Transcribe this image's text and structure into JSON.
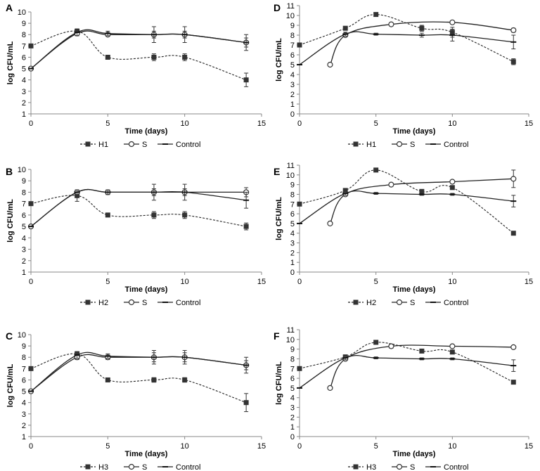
{
  "figure": {
    "panel_labels": [
      "A",
      "B",
      "C",
      "D",
      "E",
      "F"
    ]
  },
  "chart_data": [
    {
      "panel": "A",
      "type": "line",
      "title": "",
      "xlabel": "Time (days)",
      "ylabel": "log CFU/mL",
      "xlim": [
        0,
        15
      ],
      "ylim": [
        1,
        10
      ],
      "xticks": [
        "0",
        "5",
        "10",
        "15"
      ],
      "yticks": [
        "1",
        "2",
        "3",
        "4",
        "5",
        "6",
        "7",
        "8",
        "9",
        "10"
      ],
      "legend": [
        "H1",
        "S",
        "Control"
      ],
      "series": [
        {
          "name": "H1",
          "style": "dashed",
          "marker": "square",
          "x": [
            0,
            3,
            5,
            8,
            10,
            14
          ],
          "y": [
            7.0,
            8.3,
            6.0,
            6.0,
            6.0,
            4.0
          ],
          "err": [
            0,
            0.2,
            0.1,
            0.3,
            0.3,
            0.6
          ]
        },
        {
          "name": "S",
          "style": "solid",
          "marker": "circle",
          "x": [
            0,
            3,
            5,
            8,
            10,
            14
          ],
          "y": [
            5.0,
            8.1,
            8.0,
            8.0,
            8.0,
            7.3
          ],
          "err": [
            0,
            0.2,
            0.1,
            0.3,
            0.3,
            0.4
          ]
        },
        {
          "name": "Control",
          "style": "solid",
          "marker": "dash",
          "x": [
            0,
            3,
            5,
            8,
            10,
            14
          ],
          "y": [
            5.0,
            8.2,
            8.1,
            8.0,
            8.0,
            7.3
          ],
          "err": [
            0,
            0.3,
            0.2,
            0.7,
            0.7,
            0.7
          ]
        }
      ]
    },
    {
      "panel": "B",
      "type": "line",
      "title": "",
      "xlabel": "Time (days)",
      "ylabel": "log CFU/mL",
      "xlim": [
        0,
        15
      ],
      "ylim": [
        1,
        10
      ],
      "xticks": [
        "0",
        "5",
        "10",
        "15"
      ],
      "yticks": [
        "1",
        "2",
        "3",
        "4",
        "5",
        "6",
        "7",
        "8",
        "9",
        "10"
      ],
      "legend": [
        "H2",
        "S",
        "Control"
      ],
      "series": [
        {
          "name": "H2",
          "style": "dashed",
          "marker": "square",
          "x": [
            0,
            3,
            5,
            8,
            10,
            14
          ],
          "y": [
            7.0,
            7.7,
            6.0,
            6.0,
            6.0,
            5.0
          ],
          "err": [
            0,
            0.5,
            0.1,
            0.3,
            0.3,
            0.3
          ]
        },
        {
          "name": "S",
          "style": "solid",
          "marker": "circle",
          "x": [
            0,
            3,
            5,
            8,
            10,
            14
          ],
          "y": [
            5.0,
            8.0,
            8.0,
            8.0,
            8.0,
            8.0
          ],
          "err": [
            0,
            0.2,
            0.2,
            0.3,
            0.3,
            0.4
          ]
        },
        {
          "name": "Control",
          "style": "solid",
          "marker": "dash",
          "x": [
            0,
            3,
            5,
            8,
            10,
            14
          ],
          "y": [
            5.0,
            8.0,
            8.0,
            8.0,
            8.0,
            7.3
          ],
          "err": [
            0,
            0.2,
            0.2,
            0.7,
            0.7,
            0.7
          ]
        }
      ]
    },
    {
      "panel": "C",
      "type": "line",
      "title": "",
      "xlabel": "Time (days)",
      "ylabel": "log CFU/mL",
      "xlim": [
        0,
        15
      ],
      "ylim": [
        1,
        10
      ],
      "xticks": [
        "0",
        "5",
        "10",
        "15"
      ],
      "yticks": [
        "1",
        "2",
        "3",
        "4",
        "5",
        "6",
        "7",
        "8",
        "9",
        "10"
      ],
      "legend": [
        "H3",
        "S",
        "Control"
      ],
      "series": [
        {
          "name": "H3",
          "style": "dashed",
          "marker": "square",
          "x": [
            0,
            3,
            5,
            8,
            10,
            14
          ],
          "y": [
            7.0,
            8.3,
            6.0,
            6.0,
            6.0,
            4.0
          ],
          "err": [
            0,
            0.2,
            0.1,
            0.2,
            0.2,
            0.8
          ]
        },
        {
          "name": "S",
          "style": "solid",
          "marker": "circle",
          "x": [
            0,
            3,
            5,
            8,
            10,
            14
          ],
          "y": [
            5.0,
            8.0,
            8.0,
            8.0,
            8.0,
            7.3
          ],
          "err": [
            0,
            0.2,
            0.2,
            0.4,
            0.4,
            0.4
          ]
        },
        {
          "name": "Control",
          "style": "solid",
          "marker": "dash",
          "x": [
            0,
            3,
            5,
            8,
            10,
            14
          ],
          "y": [
            5.0,
            8.2,
            8.1,
            8.0,
            8.0,
            7.3
          ],
          "err": [
            0,
            0.3,
            0.2,
            0.6,
            0.6,
            0.7
          ]
        }
      ]
    },
    {
      "panel": "D",
      "type": "line",
      "title": "",
      "xlabel": "Time (days)",
      "ylabel": "log CFU/mL",
      "xlim": [
        0,
        15
      ],
      "ylim": [
        0,
        11
      ],
      "xticks": [
        "0",
        "5",
        "10",
        "15"
      ],
      "yticks": [
        "0",
        "1",
        "2",
        "3",
        "4",
        "5",
        "6",
        "7",
        "8",
        "9",
        "10",
        "11"
      ],
      "legend": [
        "H1",
        "S",
        "Control"
      ],
      "series": [
        {
          "name": "H1",
          "style": "dashed",
          "marker": "square",
          "x": [
            0,
            3,
            5,
            8,
            10,
            14
          ],
          "y": [
            7.0,
            8.7,
            10.1,
            8.7,
            8.3,
            5.3
          ],
          "err": [
            0,
            0.1,
            0.1,
            0.3,
            0.5,
            0.3
          ]
        },
        {
          "name": "S",
          "style": "solid",
          "marker": "circle",
          "x": [
            2,
            3,
            6,
            10,
            14
          ],
          "y": [
            5.0,
            8.0,
            9.1,
            9.3,
            8.5
          ],
          "err": [
            0,
            0,
            0.1,
            0.1,
            0.2
          ]
        },
        {
          "name": "Control",
          "style": "solid",
          "marker": "dash",
          "x": [
            0,
            3,
            5,
            8,
            10,
            14
          ],
          "y": [
            5.0,
            8.1,
            8.1,
            8.0,
            8.0,
            7.3
          ],
          "err": [
            0,
            0.2,
            0.1,
            0.2,
            0.6,
            0.7
          ]
        }
      ]
    },
    {
      "panel": "E",
      "type": "line",
      "title": "",
      "xlabel": "Time (days)",
      "ylabel": "log CFU/mL",
      "xlim": [
        0,
        15
      ],
      "ylim": [
        0,
        11
      ],
      "xticks": [
        "0",
        "5",
        "10",
        "15"
      ],
      "yticks": [
        "0",
        "1",
        "2",
        "3",
        "4",
        "5",
        "6",
        "7",
        "8",
        "9",
        "10",
        "11"
      ],
      "legend": [
        "H2",
        "S",
        "Control"
      ],
      "series": [
        {
          "name": "H2",
          "style": "dashed",
          "marker": "square",
          "x": [
            0,
            3,
            5,
            8,
            10,
            14
          ],
          "y": [
            7.0,
            8.4,
            10.5,
            8.3,
            8.7,
            4.0
          ],
          "err": [
            0,
            0.2,
            0.1,
            0.2,
            0.2,
            0.1
          ]
        },
        {
          "name": "S",
          "style": "solid",
          "marker": "circle",
          "x": [
            2,
            3,
            6,
            10,
            14
          ],
          "y": [
            5.0,
            8.0,
            9.0,
            9.3,
            9.6
          ],
          "err": [
            0,
            0,
            0.1,
            0.1,
            0.9
          ]
        },
        {
          "name": "Control",
          "style": "solid",
          "marker": "dash",
          "x": [
            0,
            3,
            5,
            8,
            10,
            14
          ],
          "y": [
            5.0,
            8.1,
            8.1,
            8.0,
            8.0,
            7.3
          ],
          "err": [
            0,
            0.2,
            0.1,
            0.1,
            0.1,
            0.6
          ]
        }
      ]
    },
    {
      "panel": "F",
      "type": "line",
      "title": "",
      "xlabel": "Time (days)",
      "ylabel": "log CFU/mL",
      "xlim": [
        0,
        15
      ],
      "ylim": [
        0,
        11
      ],
      "xticks": [
        "0",
        "5",
        "10",
        "15"
      ],
      "yticks": [
        "0",
        "1",
        "2",
        "3",
        "4",
        "5",
        "6",
        "7",
        "8",
        "9",
        "10",
        "11"
      ],
      "legend": [
        "H3",
        "S",
        "Control"
      ],
      "series": [
        {
          "name": "H3",
          "style": "dashed",
          "marker": "square",
          "x": [
            0,
            3,
            5,
            8,
            10,
            14
          ],
          "y": [
            7.0,
            8.2,
            9.7,
            8.8,
            8.7,
            5.6
          ],
          "err": [
            0,
            0.1,
            0.1,
            0.1,
            0.2,
            0.1
          ]
        },
        {
          "name": "S",
          "style": "solid",
          "marker": "circle",
          "x": [
            2,
            3,
            6,
            10,
            14
          ],
          "y": [
            5.0,
            8.0,
            9.3,
            9.3,
            9.2
          ],
          "err": [
            0,
            0,
            0.2,
            0.1,
            0.1
          ]
        },
        {
          "name": "Control",
          "style": "solid",
          "marker": "dash",
          "x": [
            0,
            3,
            5,
            8,
            10,
            14
          ],
          "y": [
            5.0,
            8.1,
            8.1,
            8.0,
            8.0,
            7.3
          ],
          "err": [
            0,
            0.2,
            0.1,
            0.1,
            0.1,
            0.6
          ]
        }
      ]
    }
  ]
}
